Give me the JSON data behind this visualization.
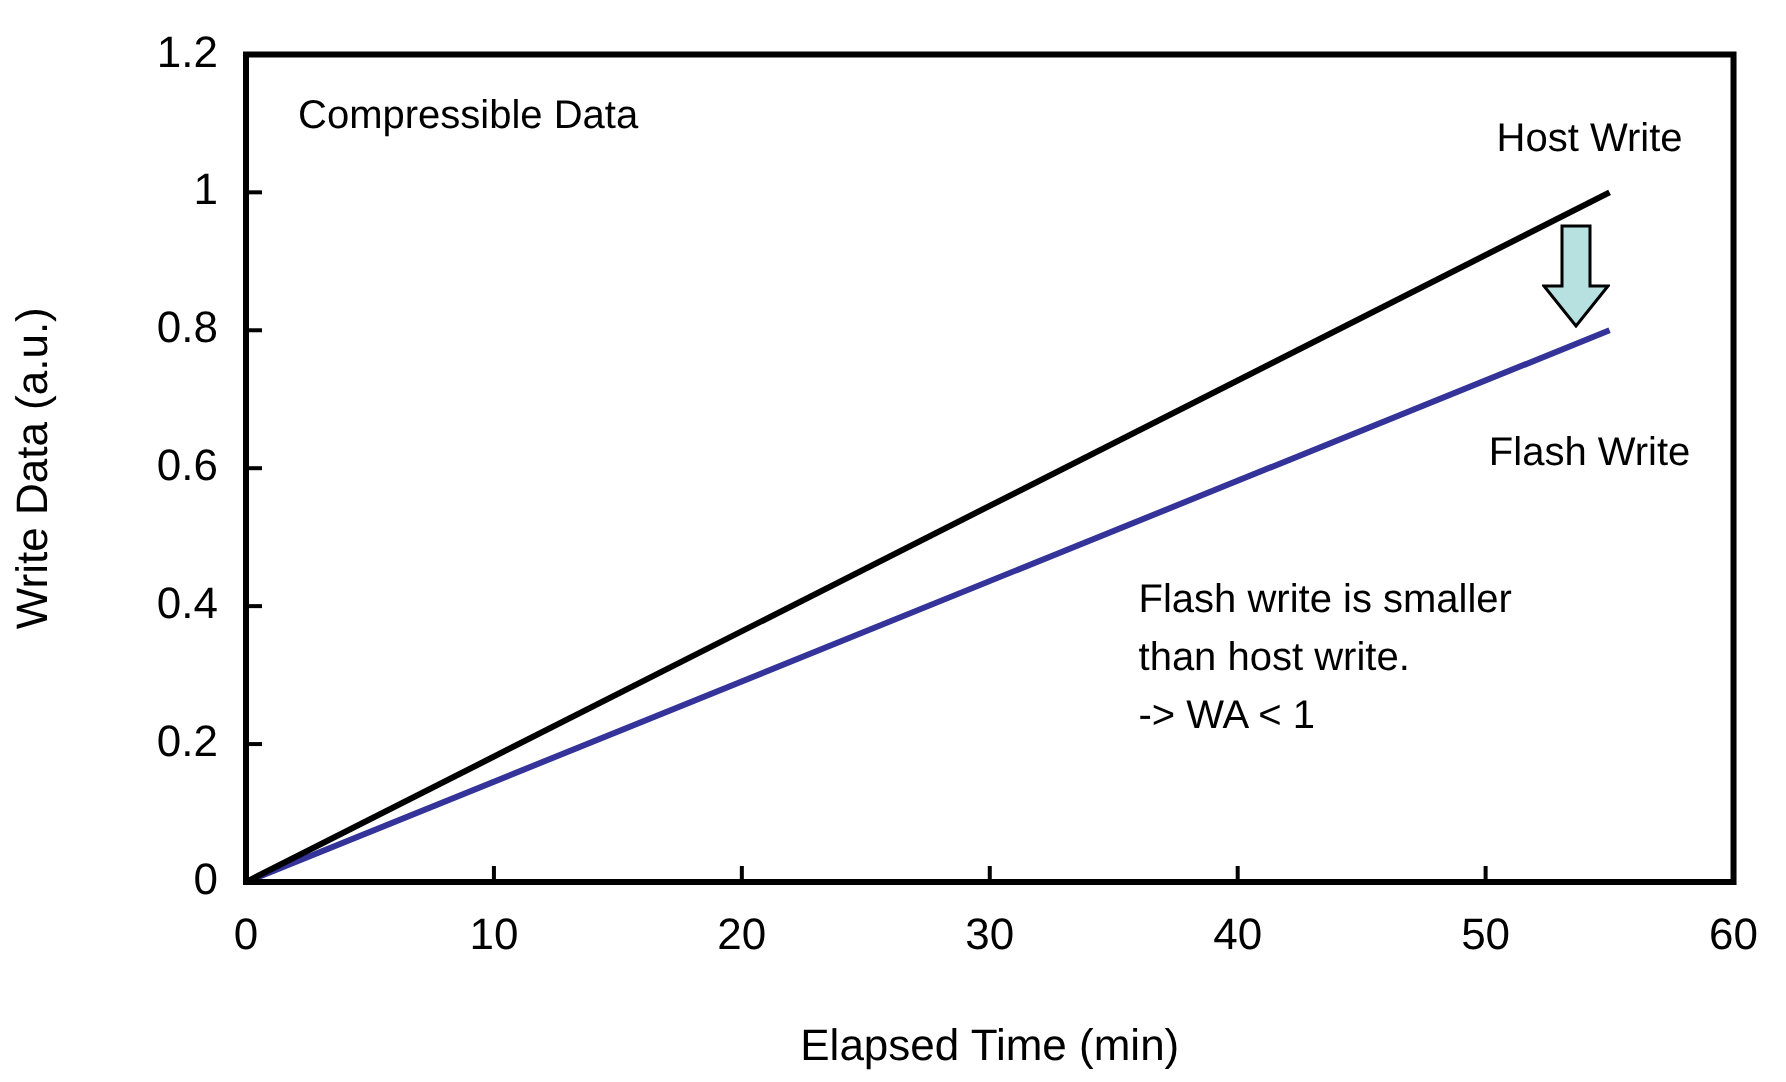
{
  "chart_data": {
    "type": "line",
    "xlabel": "Elapsed Time (min)",
    "ylabel": "Write Data (a.u.)",
    "x": [
      0,
      55
    ],
    "series": [
      {
        "name": "Host Write",
        "color": "#000000",
        "values": [
          0,
          1
        ]
      },
      {
        "name": "Flash Write",
        "color": "#333399",
        "values": [
          0,
          0.8
        ]
      }
    ],
    "xlim": [
      0,
      60
    ],
    "xticks": [
      0,
      10,
      20,
      30,
      40,
      50,
      60
    ],
    "ylim": [
      0,
      1.2
    ],
    "yticks": [
      0,
      0.2,
      0.4,
      0.6,
      0.8,
      1,
      1.2
    ],
    "grid": false,
    "legend": false,
    "marker": "none",
    "line_style": "solid",
    "annotations": [
      "Compressible Data",
      "Flash write is smaller\nthan host write.\n-> WA < 1"
    ]
  }
}
